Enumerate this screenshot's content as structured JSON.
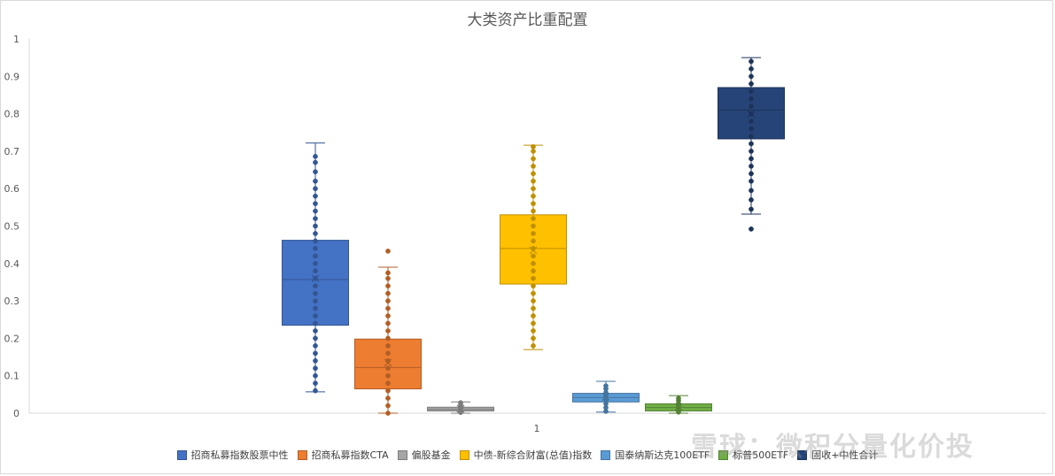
{
  "chart_data": {
    "type": "box",
    "title": "大类资产比重配置",
    "xlabel": "",
    "ylabel": "",
    "categories": [
      "1"
    ],
    "ylim": [
      0,
      1
    ],
    "yticks": [
      "0",
      "0.1",
      "0.2",
      "0.3",
      "0.4",
      "0.5",
      "0.6",
      "0.7",
      "0.8",
      "0.9",
      "1"
    ],
    "grid": false,
    "legend_position": "bottom",
    "series": [
      {
        "name": "招商私募指数股票中性",
        "color": "#4472c4",
        "min": 0.057,
        "q1": 0.235,
        "median": 0.357,
        "mean": 0.36,
        "q3": 0.462,
        "max": 0.722,
        "points": [
          0.06,
          0.08,
          0.1,
          0.12,
          0.14,
          0.16,
          0.18,
          0.2,
          0.22,
          0.24,
          0.26,
          0.28,
          0.3,
          0.32,
          0.34,
          0.36,
          0.38,
          0.4,
          0.42,
          0.44,
          0.46,
          0.48,
          0.5,
          0.52,
          0.54,
          0.56,
          0.58,
          0.6,
          0.62,
          0.645,
          0.67,
          0.686
        ]
      },
      {
        "name": "招商私募指数CTA",
        "color": "#ed7d31",
        "min": 0.0,
        "q1": 0.065,
        "median": 0.122,
        "mean": 0.135,
        "q3": 0.198,
        "max": 0.39,
        "points": [
          0.0,
          0.02,
          0.04,
          0.06,
          0.08,
          0.1,
          0.12,
          0.14,
          0.16,
          0.18,
          0.2,
          0.22,
          0.24,
          0.26,
          0.28,
          0.3,
          0.32,
          0.34,
          0.36,
          0.375,
          0.433
        ]
      },
      {
        "name": "偏股基金",
        "color": "#a5a5a5",
        "min": 0.0,
        "q1": 0.006,
        "median": 0.01,
        "mean": 0.012,
        "q3": 0.016,
        "max": 0.03,
        "points": [
          0.002,
          0.006,
          0.01,
          0.014,
          0.018,
          0.024,
          0.028
        ]
      },
      {
        "name": "中债-新综合财富(总值)指数",
        "color": "#ffc000",
        "min": 0.17,
        "q1": 0.345,
        "median": 0.44,
        "mean": 0.435,
        "q3": 0.53,
        "max": 0.716,
        "points": [
          0.18,
          0.2,
          0.22,
          0.24,
          0.26,
          0.28,
          0.3,
          0.32,
          0.34,
          0.36,
          0.38,
          0.4,
          0.42,
          0.44,
          0.46,
          0.48,
          0.5,
          0.52,
          0.54,
          0.56,
          0.58,
          0.6,
          0.62,
          0.64,
          0.66,
          0.68,
          0.7,
          0.712
        ]
      },
      {
        "name": "国泰纳斯达克100ETF",
        "color": "#5b9bd5",
        "min": 0.003,
        "q1": 0.03,
        "median": 0.042,
        "mean": 0.044,
        "q3": 0.053,
        "max": 0.085,
        "points": [
          0.005,
          0.015,
          0.025,
          0.035,
          0.045,
          0.055,
          0.065,
          0.073
        ]
      },
      {
        "name": "标普500ETF",
        "color": "#70ad47",
        "min": 0.0,
        "q1": 0.006,
        "median": 0.015,
        "mean": 0.016,
        "q3": 0.025,
        "max": 0.047,
        "points": [
          0.003,
          0.01,
          0.018,
          0.026,
          0.034,
          0.04
        ]
      },
      {
        "name": "固收+中性合计",
        "color": "#264478",
        "min": 0.532,
        "q1": 0.733,
        "median": 0.81,
        "mean": 0.8,
        "q3": 0.87,
        "max": 0.95,
        "points": [
          0.492,
          0.545,
          0.57,
          0.595,
          0.62,
          0.64,
          0.66,
          0.68,
          0.7,
          0.72,
          0.74,
          0.76,
          0.78,
          0.8,
          0.82,
          0.84,
          0.86,
          0.88,
          0.9,
          0.92,
          0.94
        ]
      }
    ]
  },
  "watermark": "雪球：微积分量化价投"
}
